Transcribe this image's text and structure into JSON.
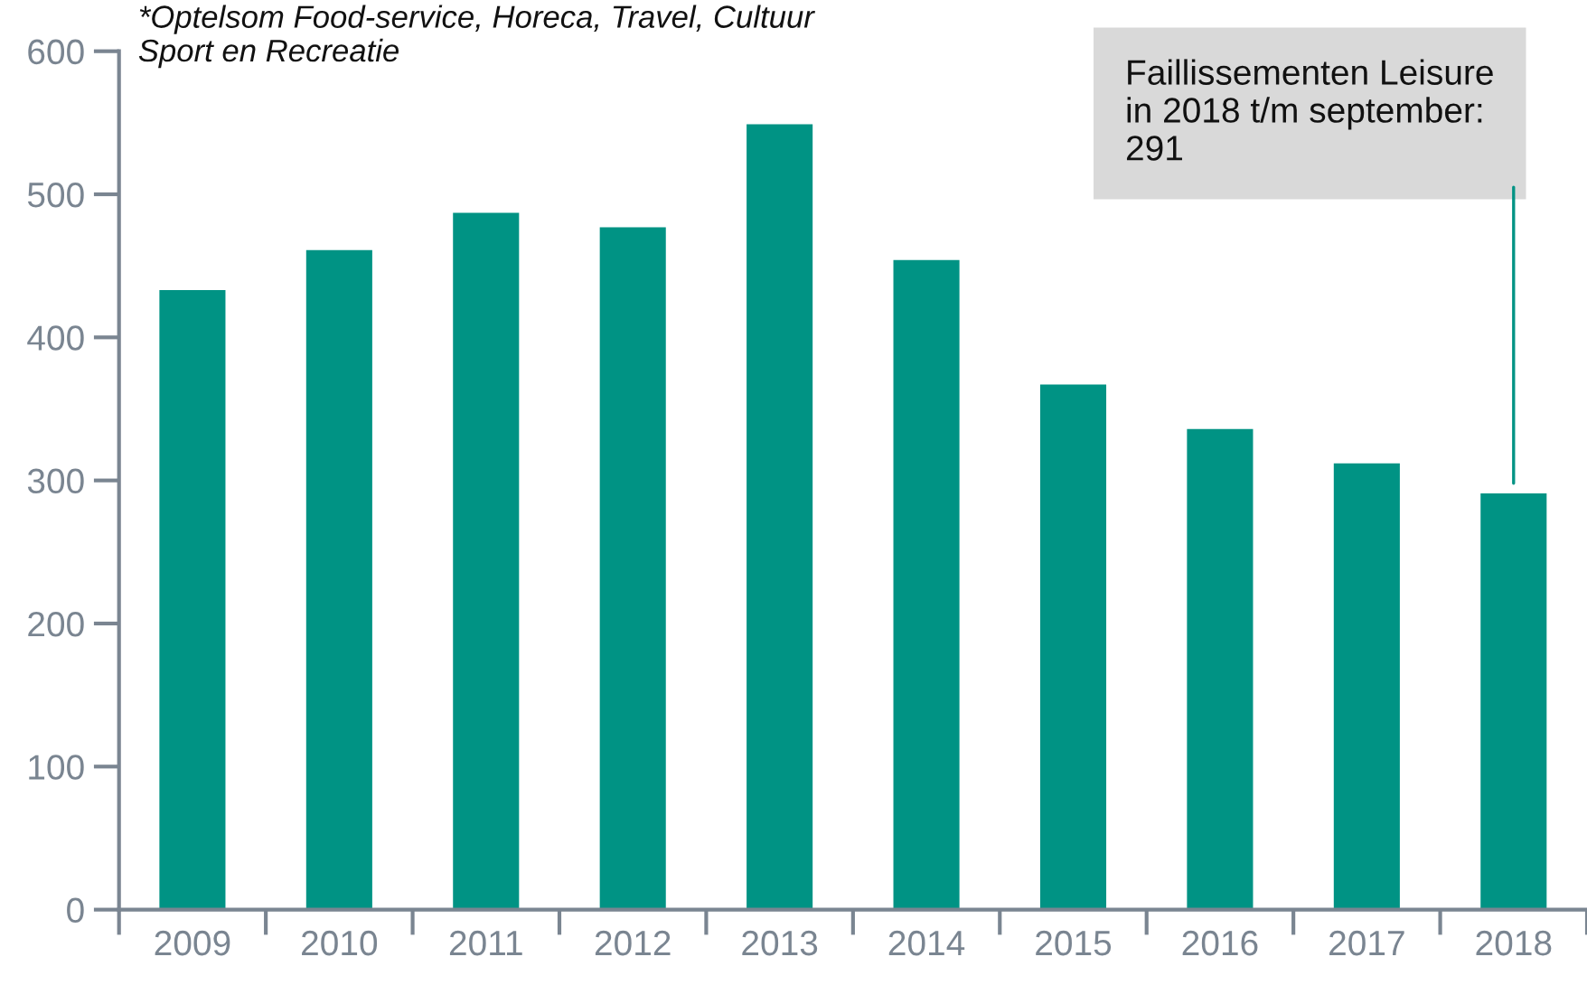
{
  "chart_data": {
    "type": "bar",
    "categories": [
      "2009",
      "2010",
      "2011",
      "2012",
      "2013",
      "2014",
      "2015",
      "2016",
      "2017",
      "2018"
    ],
    "values": [
      433,
      461,
      487,
      477,
      549,
      454,
      367,
      336,
      312,
      291
    ],
    "color": "#009384",
    "ylim": [
      0,
      600
    ],
    "yticks": [
      0,
      100,
      200,
      300,
      400,
      500,
      600
    ],
    "annotations": [
      "*Optelsom Food-service, Horeca, Travel, Cultuur\nSport en Recreatie",
      {
        "text": "Faillissementen Leisure\nin 2018 t/m september:\n291",
        "x": "2018",
        "y": 291
      }
    ]
  }
}
